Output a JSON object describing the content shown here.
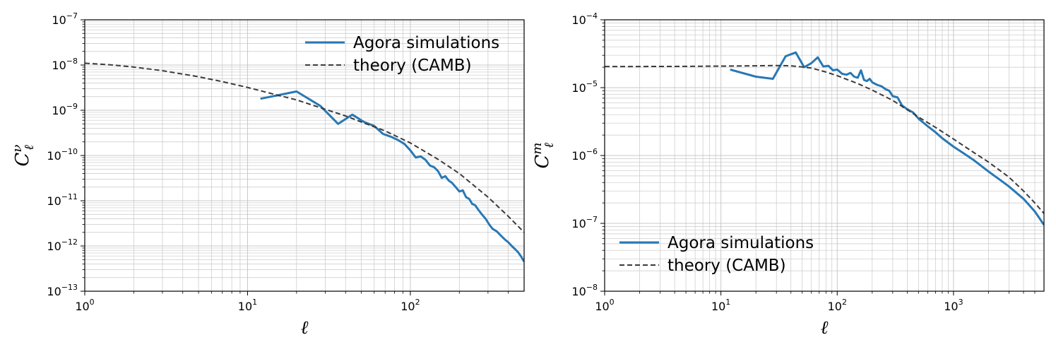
{
  "colors": {
    "simulation": "#2878b5",
    "theory": "#3a3a3a",
    "grid": "#c8c8c8"
  },
  "chart_data": [
    {
      "type": "line",
      "xscale": "log",
      "yscale": "log",
      "xlim": [
        1,
        500
      ],
      "ylim": [
        1e-13,
        1e-07
      ],
      "grid": true,
      "legend_placement": "top-right",
      "xlabel": "ℓ",
      "ylabel": {
        "base": "C",
        "sub": "ℓ",
        "sup": "ν"
      },
      "xticks": [
        {
          "value": 1,
          "base": "10",
          "exp": "0"
        },
        {
          "value": 10,
          "base": "10",
          "exp": "1"
        },
        {
          "value": 100,
          "base": "10",
          "exp": "2"
        }
      ],
      "yticks": [
        {
          "value": 1e-13,
          "base": "10",
          "exp": "−13"
        },
        {
          "value": 1e-12,
          "base": "10",
          "exp": "−12"
        },
        {
          "value": 1e-11,
          "base": "10",
          "exp": "−11"
        },
        {
          "value": 1e-10,
          "base": "10",
          "exp": "−10"
        },
        {
          "value": 1e-09,
          "base": "10",
          "exp": "−9"
        },
        {
          "value": 1e-08,
          "base": "10",
          "exp": "−8"
        },
        {
          "value": 1e-07,
          "base": "10",
          "exp": "−7"
        }
      ],
      "series": [
        {
          "name": "Agora simulations",
          "style": "solid",
          "x": [
            12,
            20,
            28,
            36,
            44,
            52,
            60,
            68,
            76,
            84,
            92,
            100,
            108,
            116,
            124,
            132,
            140,
            148,
            156,
            164,
            172,
            180,
            190,
            200,
            210,
            220,
            230,
            240,
            250,
            260,
            275,
            290,
            305,
            320,
            340,
            360,
            380,
            400,
            420,
            440,
            460,
            480,
            500
          ],
          "y": [
            1.8e-09,
            2.6e-09,
            1.25e-09,
            5e-10,
            8e-10,
            5.5e-10,
            4.5e-10,
            3e-10,
            2.6e-10,
            2.2e-10,
            1.8e-10,
            1.3e-10,
            9e-11,
            9.5e-11,
            8e-11,
            6e-11,
            5.5e-11,
            4.5e-11,
            3.2e-11,
            3.5e-11,
            2.8e-11,
            2.5e-11,
            2e-11,
            1.6e-11,
            1.7e-11,
            1.2e-11,
            1.1e-11,
            8.5e-12,
            8e-12,
            6.5e-12,
            5e-12,
            4e-12,
            3e-12,
            2.4e-12,
            2.1e-12,
            1.7e-12,
            1.4e-12,
            1.2e-12,
            1e-12,
            8.5e-13,
            7.2e-13,
            5.8e-13,
            4.5e-13
          ]
        },
        {
          "name": "theory (CAMB)",
          "style": "dashed",
          "x": [
            1,
            1.5,
            2,
            3,
            5,
            7,
            10,
            15,
            20,
            30,
            40,
            50,
            70,
            100,
            150,
            200,
            300,
            400,
            500
          ],
          "y": [
            1.1e-08,
            1e-08,
            9e-09,
            7.5e-09,
            5.5e-09,
            4.3e-09,
            3.2e-09,
            2.2e-09,
            1.7e-09,
            1.05e-09,
            7.5e-10,
            5.5e-10,
            3.5e-10,
            1.9e-10,
            8e-11,
            4e-11,
            1.2e-11,
            4.5e-12,
            2e-12
          ]
        }
      ]
    },
    {
      "type": "line",
      "xscale": "log",
      "yscale": "log",
      "xlim": [
        1,
        6000
      ],
      "ylim": [
        1e-08,
        0.0001
      ],
      "grid": true,
      "legend_placement": "bottom-left",
      "xlabel": "ℓ",
      "ylabel": {
        "base": "C",
        "sub": "ℓ",
        "sup": "m"
      },
      "xticks": [
        {
          "value": 1,
          "base": "10",
          "exp": "0"
        },
        {
          "value": 10,
          "base": "10",
          "exp": "1"
        },
        {
          "value": 100,
          "base": "10",
          "exp": "2"
        },
        {
          "value": 1000,
          "base": "10",
          "exp": "3"
        }
      ],
      "yticks": [
        {
          "value": 1e-08,
          "base": "10",
          "exp": "−8"
        },
        {
          "value": 1e-07,
          "base": "10",
          "exp": "−7"
        },
        {
          "value": 1e-06,
          "base": "10",
          "exp": "−6"
        },
        {
          "value": 1e-05,
          "base": "10",
          "exp": "−5"
        },
        {
          "value": 0.0001,
          "base": "10",
          "exp": "−4"
        }
      ],
      "series": [
        {
          "name": "Agora simulations",
          "style": "solid",
          "x": [
            12,
            20,
            28,
            36,
            44,
            52,
            60,
            68,
            76,
            84,
            92,
            100,
            110,
            120,
            130,
            140,
            150,
            160,
            170,
            180,
            190,
            200,
            220,
            240,
            260,
            280,
            300,
            330,
            360,
            400,
            450,
            500,
            600,
            700,
            800,
            1000,
            1200,
            1500,
            2000,
            2500,
            3000,
            4000,
            5000,
            6000
          ],
          "y": [
            1.85e-05,
            1.45e-05,
            1.35e-05,
            2.9e-05,
            3.3e-05,
            2e-05,
            2.3e-05,
            2.8e-05,
            2.05e-05,
            2.1e-05,
            1.8e-05,
            1.85e-05,
            1.6e-05,
            1.55e-05,
            1.65e-05,
            1.45e-05,
            1.4e-05,
            1.8e-05,
            1.3e-05,
            1.25e-05,
            1.35e-05,
            1.2e-05,
            1.1e-05,
            1.05e-05,
            9.5e-06,
            9e-06,
            7.5e-06,
            7.2e-06,
            5.5e-06,
            4.8e-06,
            4.3e-06,
            3.5e-06,
            2.7e-06,
            2.2e-06,
            1.8e-06,
            1.35e-06,
            1.1e-06,
            8.5e-07,
            5.8e-07,
            4.4e-07,
            3.5e-07,
            2.3e-07,
            1.5e-07,
            9.5e-08
          ]
        },
        {
          "name": "theory (CAMB)",
          "style": "dashed",
          "x": [
            1,
            2,
            5,
            10,
            20,
            30,
            40,
            60,
            80,
            100,
            150,
            200,
            300,
            500,
            700,
            1000,
            1500,
            2000,
            3000,
            4000,
            5000,
            6000
          ],
          "y": [
            2.05e-05,
            2.05e-05,
            2.06e-05,
            2.08e-05,
            2.1e-05,
            2.12e-05,
            2.1e-05,
            1.95e-05,
            1.7e-05,
            1.5e-05,
            1.15e-05,
            9.2e-06,
            6.5e-06,
            3.7e-06,
            2.6e-06,
            1.75e-06,
            1.1e-06,
            8e-07,
            4.8e-07,
            3e-07,
            2e-07,
            1.4e-07
          ]
        }
      ]
    }
  ]
}
